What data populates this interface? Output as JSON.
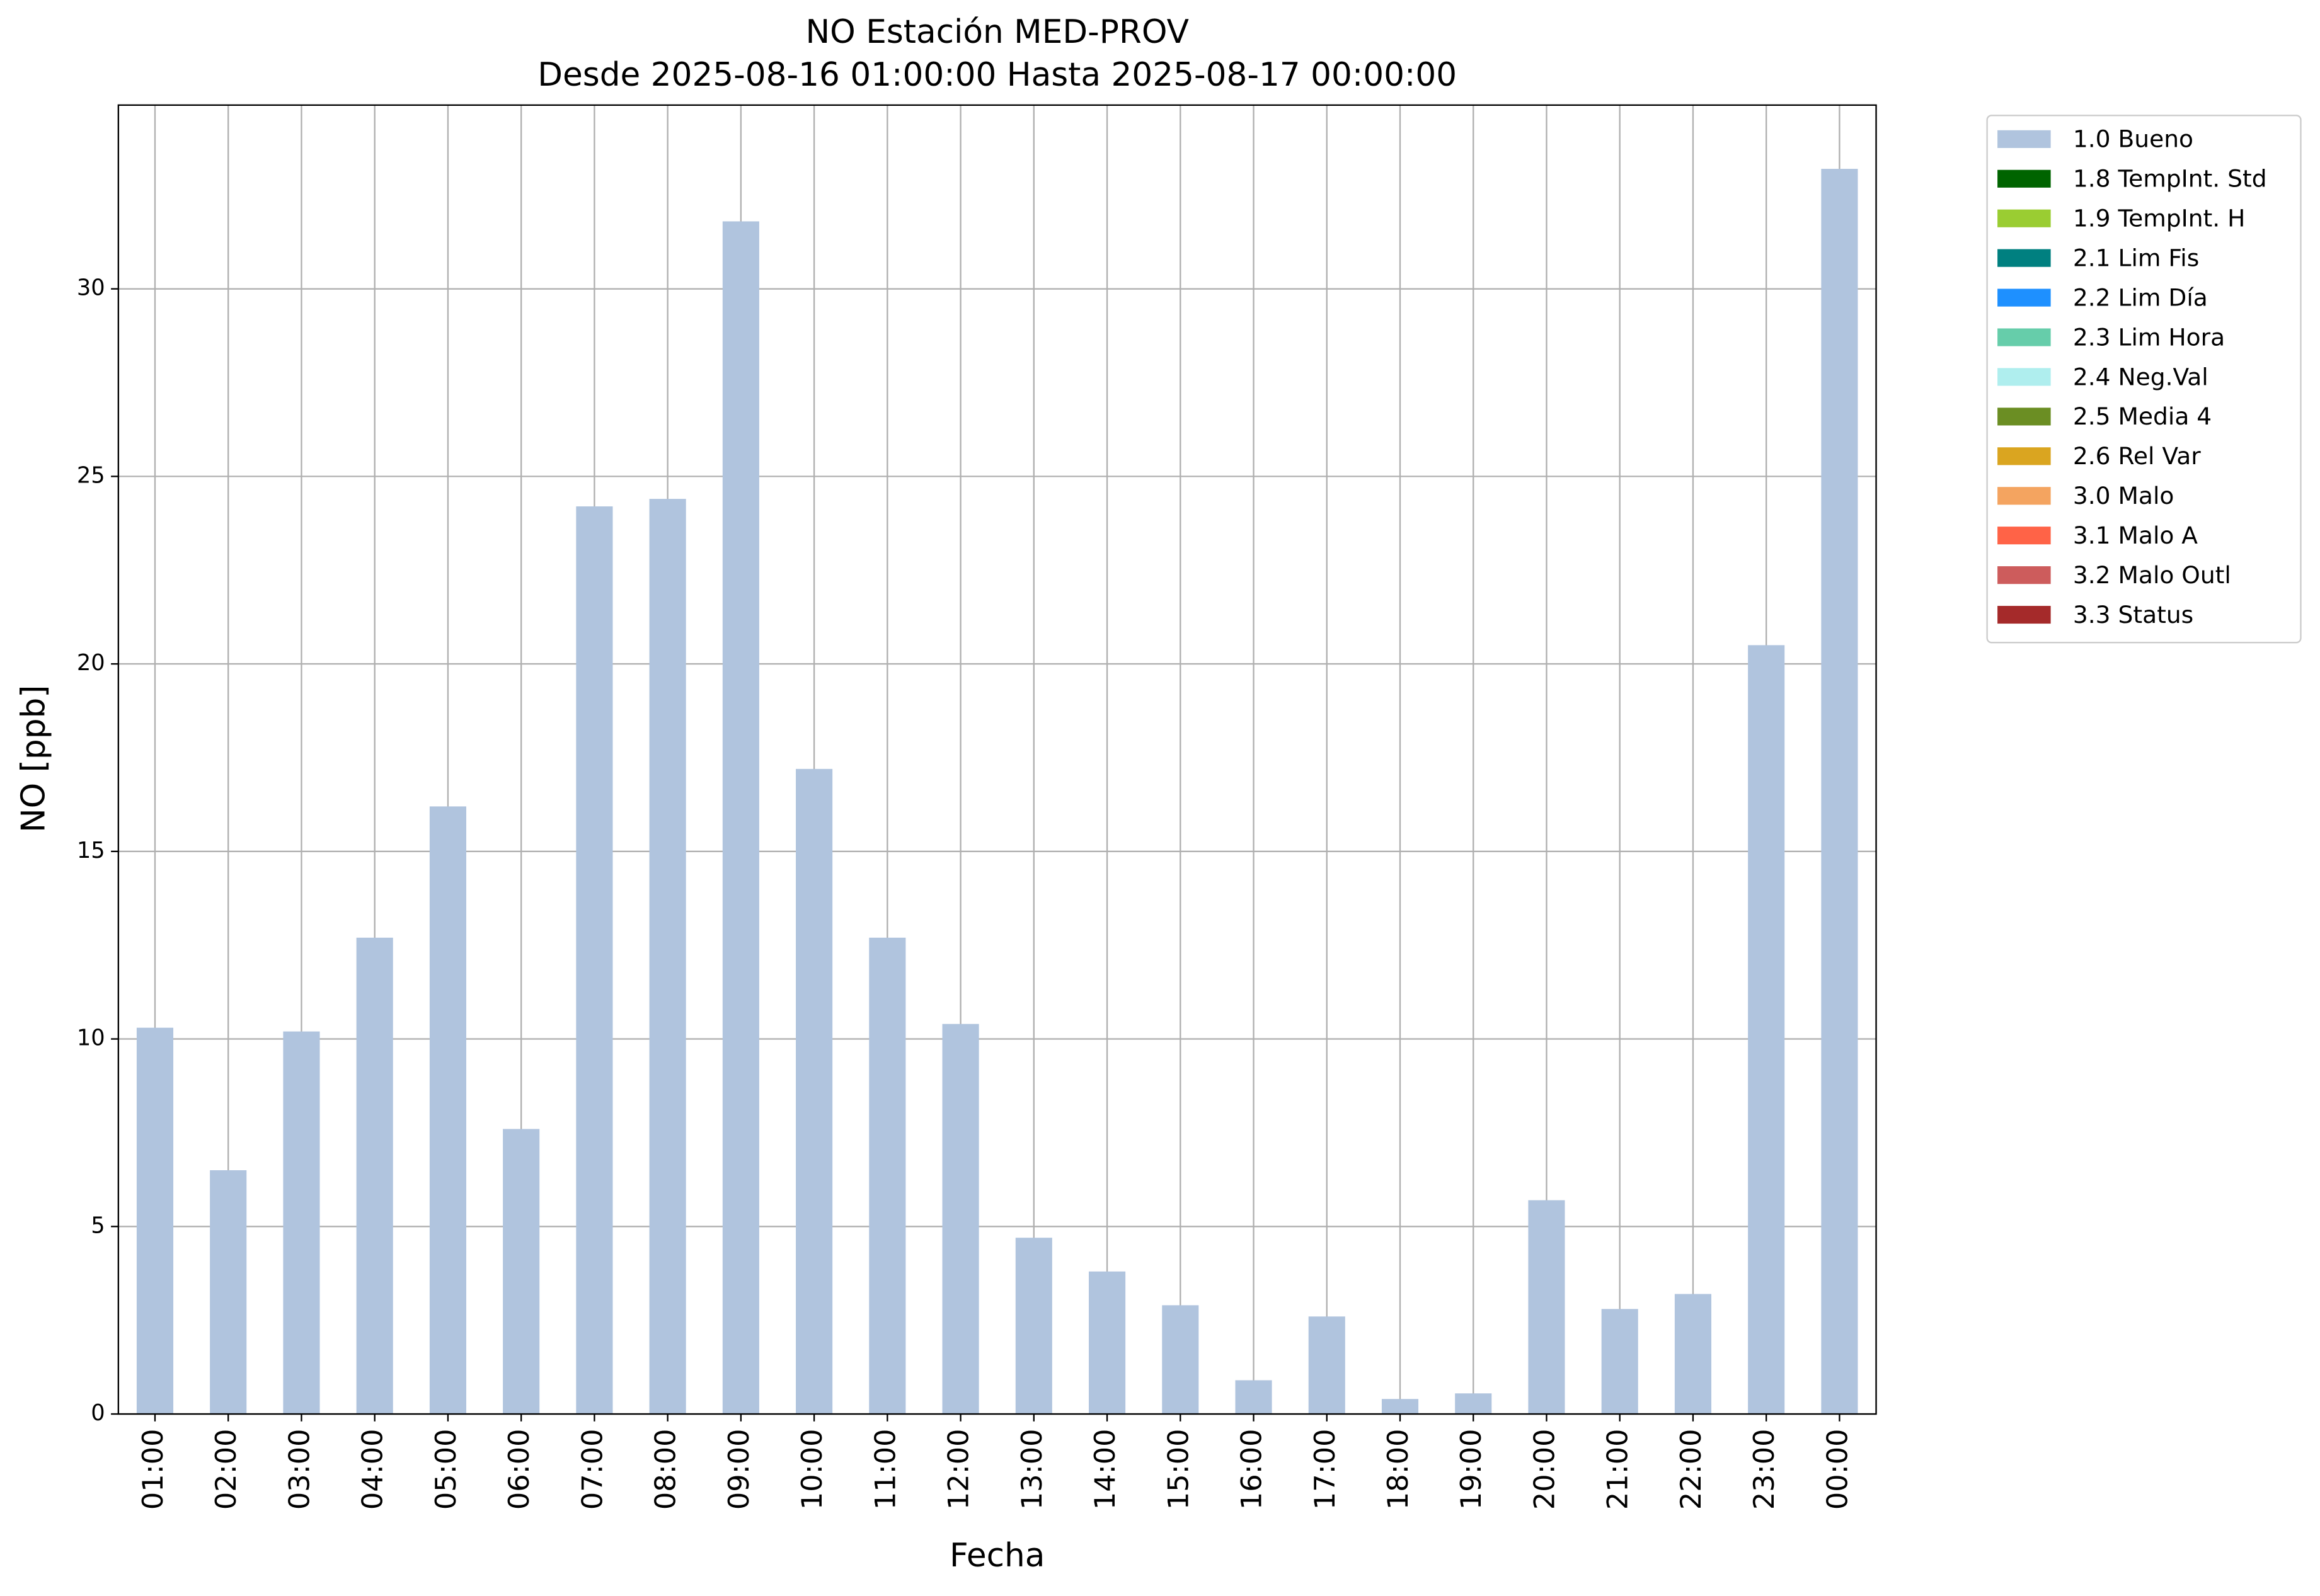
{
  "chart_data": {
    "type": "bar",
    "stacked": true,
    "title": "NO Estación MED-PROV",
    "subtitle": "Desde 2025-08-16 01:00:00 Hasta 2025-08-17 00:00:00",
    "x_label": "Fecha",
    "y_label": "NO [ppb]",
    "categories": [
      "01:00",
      "02:00",
      "03:00",
      "04:00",
      "05:00",
      "06:00",
      "07:00",
      "08:00",
      "09:00",
      "10:00",
      "11:00",
      "12:00",
      "13:00",
      "14:00",
      "15:00",
      "16:00",
      "17:00",
      "18:00",
      "19:00",
      "20:00",
      "21:00",
      "22:00",
      "23:00",
      "00:00"
    ],
    "series": [
      {
        "name": "1.0 Bueno",
        "color": "#b0c4de",
        "values": [
          10.3,
          6.5,
          10.2,
          12.7,
          16.2,
          7.6,
          24.2,
          24.4,
          31.8,
          17.2,
          12.7,
          10.4,
          4.7,
          3.8,
          2.9,
          0.9,
          2.6,
          0.4,
          0.55,
          5.7,
          2.8,
          3.2,
          20.5,
          33.2
        ]
      },
      {
        "name": "1.8 TempInt. Std",
        "color": "#006400",
        "values": [
          0,
          0,
          0,
          0,
          0,
          0,
          0,
          0,
          0,
          0,
          0,
          0,
          0,
          0,
          0,
          0,
          0,
          0,
          0,
          0,
          0,
          0,
          0,
          0
        ]
      },
      {
        "name": "1.9 TempInt. H",
        "color": "#9acd32",
        "values": [
          0,
          0,
          0,
          0,
          0,
          0,
          0,
          0,
          0,
          0,
          0,
          0,
          0,
          0,
          0,
          0,
          0,
          0,
          0,
          0,
          0,
          0,
          0,
          0
        ]
      },
      {
        "name": "2.1 Lim Fis",
        "color": "#008080",
        "values": [
          0,
          0,
          0,
          0,
          0,
          0,
          0,
          0,
          0,
          0,
          0,
          0,
          0,
          0,
          0,
          0,
          0,
          0,
          0,
          0,
          0,
          0,
          0,
          0
        ]
      },
      {
        "name": "2.2 Lim Día",
        "color": "#1e90ff",
        "values": [
          0,
          0,
          0,
          0,
          0,
          0,
          0,
          0,
          0,
          0,
          0,
          0,
          0,
          0,
          0,
          0,
          0,
          0,
          0,
          0,
          0,
          0,
          0,
          0
        ]
      },
      {
        "name": "2.3 Lim Hora",
        "color": "#66cdaa",
        "values": [
          0,
          0,
          0,
          0,
          0,
          0,
          0,
          0,
          0,
          0,
          0,
          0,
          0,
          0,
          0,
          0,
          0,
          0,
          0,
          0,
          0,
          0,
          0,
          0
        ]
      },
      {
        "name": "2.4 Neg.Val",
        "color": "#afeeee",
        "values": [
          0,
          0,
          0,
          0,
          0,
          0,
          0,
          0,
          0,
          0,
          0,
          0,
          0,
          0,
          0,
          0,
          0,
          0,
          0,
          0,
          0,
          0,
          0,
          0
        ]
      },
      {
        "name": "2.5 Media 4",
        "color": "#6b8e23",
        "values": [
          0,
          0,
          0,
          0,
          0,
          0,
          0,
          0,
          0,
          0,
          0,
          0,
          0,
          0,
          0,
          0,
          0,
          0,
          0,
          0,
          0,
          0,
          0,
          0
        ]
      },
      {
        "name": "2.6 Rel Var",
        "color": "#daa520",
        "values": [
          0,
          0,
          0,
          0,
          0,
          0,
          0,
          0,
          0,
          0,
          0,
          0,
          0,
          0,
          0,
          0,
          0,
          0,
          0,
          0,
          0,
          0,
          0,
          0
        ]
      },
      {
        "name": "3.0 Malo",
        "color": "#f4a460",
        "values": [
          0,
          0,
          0,
          0,
          0,
          0,
          0,
          0,
          0,
          0,
          0,
          0,
          0,
          0,
          0,
          0,
          0,
          0,
          0,
          0,
          0,
          0,
          0,
          0
        ]
      },
      {
        "name": "3.1 Malo A",
        "color": "#ff6347",
        "values": [
          0,
          0,
          0,
          0,
          0,
          0,
          0,
          0,
          0,
          0,
          0,
          0,
          0,
          0,
          0,
          0,
          0,
          0,
          0,
          0,
          0,
          0,
          0,
          0
        ]
      },
      {
        "name": "3.2 Malo Outl",
        "color": "#cd5c5c",
        "values": [
          0,
          0,
          0,
          0,
          0,
          0,
          0,
          0,
          0,
          0,
          0,
          0,
          0,
          0,
          0,
          0,
          0,
          0,
          0,
          0,
          0,
          0,
          0,
          0
        ]
      },
      {
        "name": "3.3 Status",
        "color": "#a52a2a",
        "values": [
          0,
          0,
          0,
          0,
          0,
          0,
          0,
          0,
          0,
          0,
          0,
          0,
          0,
          0,
          0,
          0,
          0,
          0,
          0,
          0,
          0,
          0,
          0,
          0
        ]
      }
    ],
    "ylim": [
      0,
      34.9
    ],
    "yticks": [
      0,
      5,
      10,
      15,
      20,
      25,
      30
    ],
    "grid": true,
    "legend": "outside-right"
  }
}
